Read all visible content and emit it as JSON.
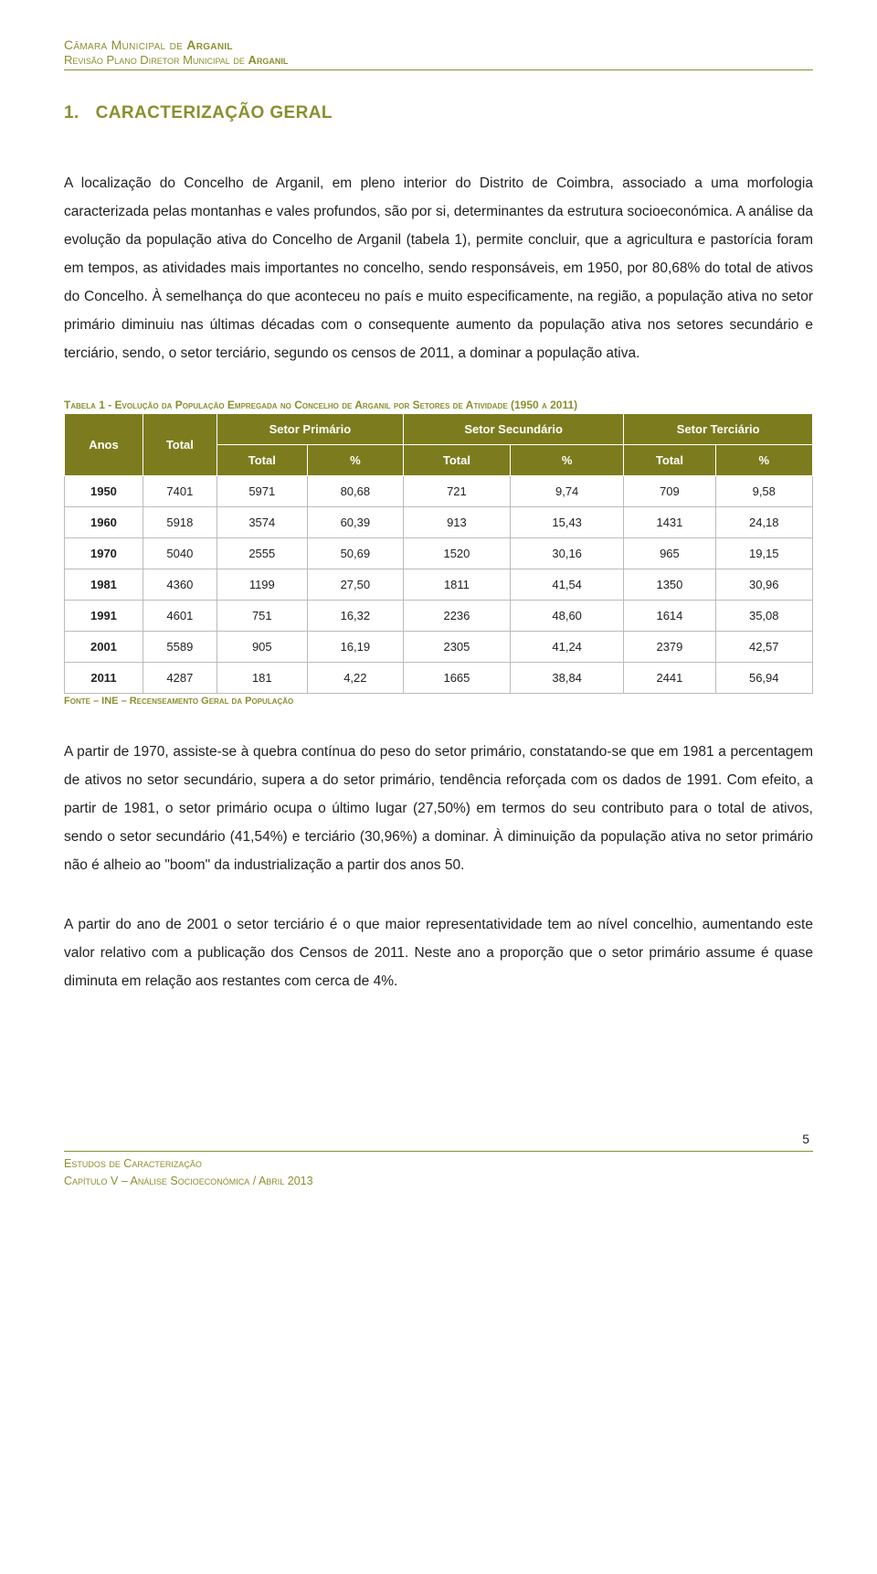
{
  "header": {
    "line1_prefix": "Câmara Municipal de ",
    "line1_bold": "Arganil",
    "line2_prefix": "Revisão Plano Diretor Municipal de ",
    "line2_bold": "Arganil"
  },
  "section": {
    "number": "1.",
    "title": "CARACTERIZAÇÃO GERAL"
  },
  "paragraph1": "A localização do Concelho de Arganil, em pleno interior do Distrito de Coimbra, associado a uma morfologia caracterizada pelas montanhas e vales profundos, são por si, determinantes da estrutura socioeconómica. A análise da evolução da população ativa do Concelho de Arganil (tabela 1), permite concluir, que a agricultura e pastorícia foram em tempos, as atividades mais importantes no concelho, sendo responsáveis, em 1950, por 80,68% do total de ativos do Concelho. À semelhança do que aconteceu no país e muito especificamente, na região, a população ativa no setor primário diminuiu nas últimas décadas com o consequente aumento da população ativa nos setores secundário e terciário, sendo, o setor terciário, segundo os censos de 2011, a dominar a população ativa.",
  "table": {
    "caption": "Tabela 1 - Evolução da População Empregada no Concelho de Arganil por Setores de Atividade (1950 a 2011)",
    "header_bg": "#7c7c1e",
    "header_fg": "#ffffff",
    "cell_bg": "#ffffff",
    "border_color": "#bbbbbb",
    "col_anos": "Anos",
    "col_total": "Total",
    "col_primario": "Setor Primário",
    "col_secundario": "Setor Secundário",
    "col_terciario": "Setor Terciário",
    "sub_total": "Total",
    "sub_pct": "%",
    "rows": [
      {
        "ano": "1950",
        "total": "7401",
        "p_t": "5971",
        "p_p": "80,68",
        "s_t": "721",
        "s_p": "9,74",
        "t_t": "709",
        "t_p": "9,58"
      },
      {
        "ano": "1960",
        "total": "5918",
        "p_t": "3574",
        "p_p": "60,39",
        "s_t": "913",
        "s_p": "15,43",
        "t_t": "1431",
        "t_p": "24,18"
      },
      {
        "ano": "1970",
        "total": "5040",
        "p_t": "2555",
        "p_p": "50,69",
        "s_t": "1520",
        "s_p": "30,16",
        "t_t": "965",
        "t_p": "19,15"
      },
      {
        "ano": "1981",
        "total": "4360",
        "p_t": "1199",
        "p_p": "27,50",
        "s_t": "1811",
        "s_p": "41,54",
        "t_t": "1350",
        "t_p": "30,96"
      },
      {
        "ano": "1991",
        "total": "4601",
        "p_t": "751",
        "p_p": "16,32",
        "s_t": "2236",
        "s_p": "48,60",
        "t_t": "1614",
        "t_p": "35,08"
      },
      {
        "ano": "2001",
        "total": "5589",
        "p_t": "905",
        "p_p": "16,19",
        "s_t": "2305",
        "s_p": "41,24",
        "t_t": "2379",
        "t_p": "42,57"
      },
      {
        "ano": "2011",
        "total": "4287",
        "p_t": "181",
        "p_p": "4,22",
        "s_t": "1665",
        "s_p": "38,84",
        "t_t": "2441",
        "t_p": "56,94"
      }
    ],
    "footnote": "Fonte – INE – Recenseamento Geral da População"
  },
  "paragraph2": "A partir de 1970, assiste-se à quebra contínua do peso do setor primário, constatando-se que em 1981 a percentagem de ativos no setor secundário, supera a do setor primário, tendência reforçada com os dados de 1991. Com efeito, a partir de 1981, o setor primário ocupa o último lugar (27,50%) em termos do seu contributo para o total de ativos, sendo o setor secundário (41,54%) e terciário (30,96%) a dominar. À diminuição da população ativa no setor primário não é alheio ao \"boom\" da industrialização a partir dos anos 50.",
  "paragraph3": "A partir do ano de 2001 o setor terciário é o que maior representatividade tem ao nível concelhio, aumentando este valor relativo com a publicação dos Censos de 2011. Neste ano a proporção que o setor primário assume é quase diminuta em relação aos restantes com cerca de 4%.",
  "footer": {
    "line1": "Estudos de Caracterização",
    "line2": "Capítulo V – Análise Socioeconómica / Abril 2013",
    "page": "5"
  },
  "colors": {
    "accent": "#8a8f2f",
    "text": "#222222"
  }
}
